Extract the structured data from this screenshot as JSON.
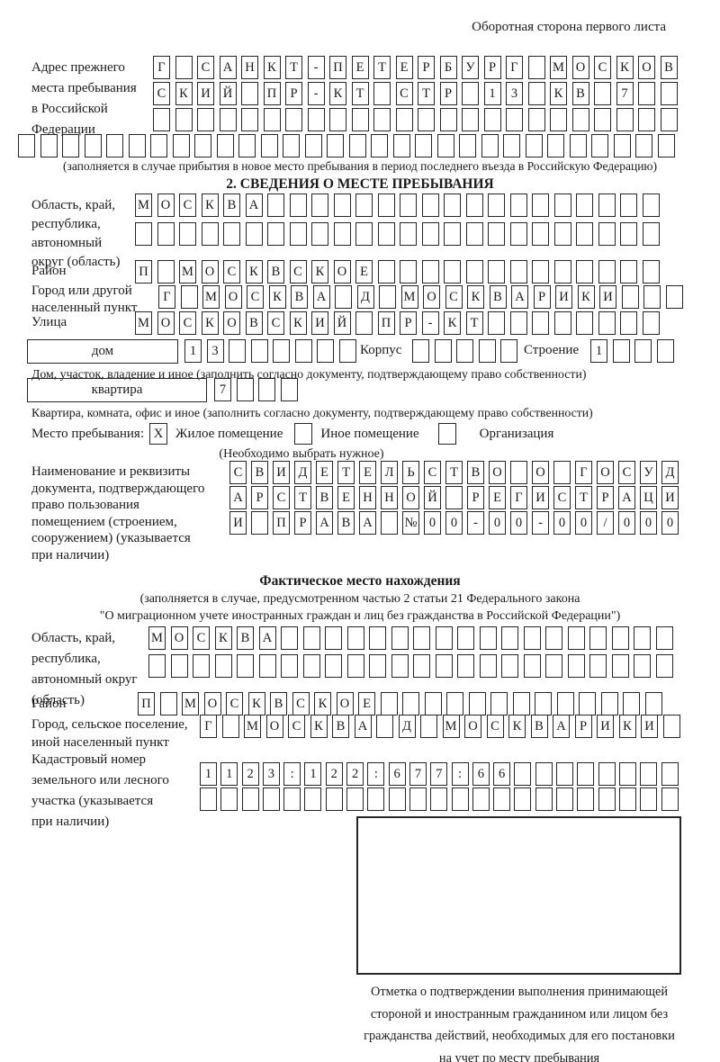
{
  "page": {
    "header_note": "Оборотная сторона первого листа"
  },
  "prev_address": {
    "label": "Адрес прежнего\nместа пребывания\nв Российской\nФедерации",
    "row1": "Г САНКТ-ПЕТЕРБУРГ МОСКОВ",
    "row2": "СКИЙ ПР-КТ СТР 13 КВ 7  ",
    "row3": "                        ",
    "row4": "                              ",
    "fill_note": "(заполняется в случае прибытия в новое место пребывания в период последнего въезда в Российскую Федерацию)"
  },
  "section2": {
    "title": "2. СВЕДЕНИЯ О МЕСТЕ ПРЕБЫВАНИЯ",
    "region": {
      "label": "Область, край,\nреспублика,\nавтономный\nокруг (область)",
      "row1": "МОСКВА                  ",
      "row2": "                        "
    },
    "district": {
      "label": "Район",
      "row": "П МОСКВСКОЕ             "
    },
    "city": {
      "label": "Город или другой\nнаселенный пункт",
      "row": "Г МОСКВА Д МОСКВАРИКИ   "
    },
    "street": {
      "label": "Улица",
      "row": "МОСКОВСКИЙ ПР-КТ        "
    },
    "house": {
      "type_label": "дом",
      "row": "13      ",
      "korpus_label": "Корпус",
      "korpus_row": "     ",
      "stroenie_label": "Строение",
      "stroenie_row": "1   ",
      "note": "Дом, участок, владение и иное (заполнить согласно документу, подтверждающему право собственности)"
    },
    "apartment": {
      "type_label": "квартира",
      "row": "7   ",
      "note": "Квартира, комната, офис и иное (заполнить согласно документу, подтверждающему право собственности)"
    },
    "stay_type": {
      "label": "Место пребывания:",
      "options": [
        {
          "label": "Жилое помещение",
          "mark": "X"
        },
        {
          "label": "Иное помещение",
          "mark": ""
        },
        {
          "label": "Организация",
          "mark": ""
        }
      ],
      "note": "(Необходимо выбрать нужное)"
    },
    "document": {
      "label": "Наименование и реквизиты\nдокумента, подтверждающего\nправо пользования\nпомещением (строением,\nсооружением) (указывается\nпри наличии)",
      "row1": "СВИДЕТЕЛЬСТВО О ГОСУД",
      "row2": "АРСТВЕННОЙ РЕГИСТРАЦИ",
      "row3": "И ПРАВА №00-00-00/000"
    }
  },
  "actual_location": {
    "title": "Фактическое место нахождения",
    "note1": "(заполняется в случае, предусмотренном частью 2 статьи 21 Федерального закона",
    "note2": "\"О миграционном учете иностранных граждан и лиц без гражданства в Российской Федерации\")",
    "region": {
      "label": "Область, край,\nреспублика,\nавтономный округ\n(область)",
      "row1": "МОСКВА                  ",
      "row2": "                        "
    },
    "district": {
      "label": "Район",
      "row": "П МОСКВСКОЕ             "
    },
    "city": {
      "label": "Город, сельское поселение,\nиной населенный пункт",
      "row": "Г МОСКВА Д МОСКВАРИКИ "
    },
    "cadastre": {
      "label": "Кадастровый номер\nземельного или лесного\nучастка (указывается\nпри наличии)",
      "row1": "1123:122:677:66        ",
      "row2": "                       "
    },
    "stamp_note": "Отметка о подтверждении выполнения принимающей\nстороной и иностранным гражданином или лицом без\nгражданства действий, необходимых для его постановки\nна учет по месту пребывания"
  }
}
